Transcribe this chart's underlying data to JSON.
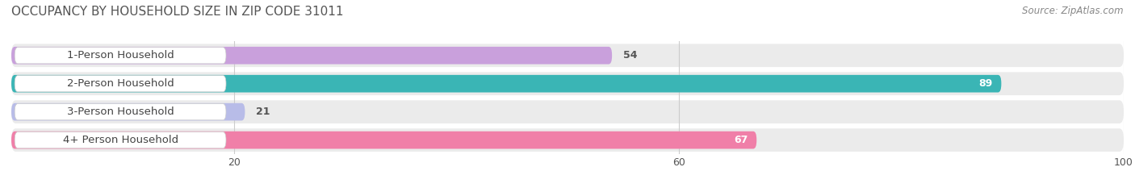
{
  "title": "OCCUPANCY BY HOUSEHOLD SIZE IN ZIP CODE 31011",
  "source": "Source: ZipAtlas.com",
  "categories": [
    "1-Person Household",
    "2-Person Household",
    "3-Person Household",
    "4+ Person Household"
  ],
  "values": [
    54,
    89,
    21,
    67
  ],
  "bar_colors": [
    "#c9a0dc",
    "#3ab5b5",
    "#b8bce8",
    "#f07fa8"
  ],
  "xlim": [
    0,
    100
  ],
  "xticks": [
    20,
    60,
    100
  ],
  "row_bg_color": "#e8e8e8",
  "bar_height": 0.62,
  "label_fontsize": 9.5,
  "value_fontsize": 9,
  "title_fontsize": 11,
  "source_fontsize": 8.5,
  "value_inside_color": "white",
  "value_outside_color": "#555555"
}
